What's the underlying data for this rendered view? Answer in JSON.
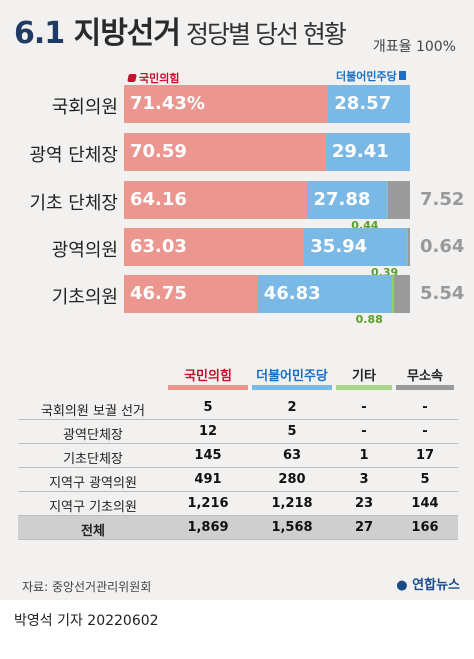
{
  "header": {
    "title_num": "6.1",
    "title_main": "지방선거",
    "subtitle": "정당별 당선 현황",
    "rate": "개표율 100%"
  },
  "legend": {
    "ppp": "국민의힘",
    "dp": "더불어민주당"
  },
  "chart_data": {
    "type": "bar",
    "stacked": true,
    "categories": [
      "국회의원",
      "광역 단체장",
      "기초 단체장",
      "광역의원",
      "기초의원"
    ],
    "series": [
      {
        "name": "국민의힘",
        "color": "#ec9690",
        "values": [
          71.43,
          70.59,
          64.16,
          63.03,
          46.75
        ],
        "labels": [
          "71.43%",
          "70.59",
          "64.16",
          "63.03",
          "46.75"
        ]
      },
      {
        "name": "더불어민주당",
        "color": "#7ab8e6",
        "values": [
          28.57,
          29.41,
          27.88,
          35.94,
          46.83
        ],
        "labels": [
          "28.57",
          "29.41",
          "27.88",
          "35.94",
          "46.83"
        ]
      },
      {
        "name": "",
        "color": "#8fcf6a",
        "values": [
          0,
          0,
          0.44,
          0.39,
          0.88
        ],
        "labels": [
          "",
          "",
          "0.44",
          "0.39",
          "0.88"
        ]
      },
      {
        "name": "",
        "color": "#9a9a9a",
        "values": [
          0,
          0,
          7.52,
          0.64,
          5.54
        ],
        "labels": [
          "",
          "",
          "7.52",
          "0.64",
          "5.54"
        ]
      }
    ],
    "xlim": [
      0,
      100
    ]
  },
  "table": {
    "columns": [
      "국민의힘",
      "더불어민주당",
      "기타",
      "무소속"
    ],
    "col_colors": [
      "#ec9690",
      "#7ab8e6",
      "#a8d98a",
      "#9a9a9a"
    ],
    "rows": [
      {
        "label": "국회의원 보궐 선거",
        "values": [
          "5",
          "2",
          "-",
          "-"
        ]
      },
      {
        "label": "광역단체장",
        "values": [
          "12",
          "5",
          "-",
          "-"
        ]
      },
      {
        "label": "기초단체장",
        "values": [
          "145",
          "63",
          "1",
          "17"
        ]
      },
      {
        "label": "지역구 광역의원",
        "values": [
          "491",
          "280",
          "3",
          "5"
        ]
      },
      {
        "label": "지역구 기초의원",
        "values": [
          "1,216",
          "1,218",
          "23",
          "144"
        ]
      },
      {
        "label": "전체",
        "values": [
          "1,869",
          "1,568",
          "27",
          "166"
        ]
      }
    ]
  },
  "footer": {
    "source": "자료: 중앙선거관리위원회",
    "logo": "연합뉴스",
    "byline": "박영석 기자  20220602"
  }
}
